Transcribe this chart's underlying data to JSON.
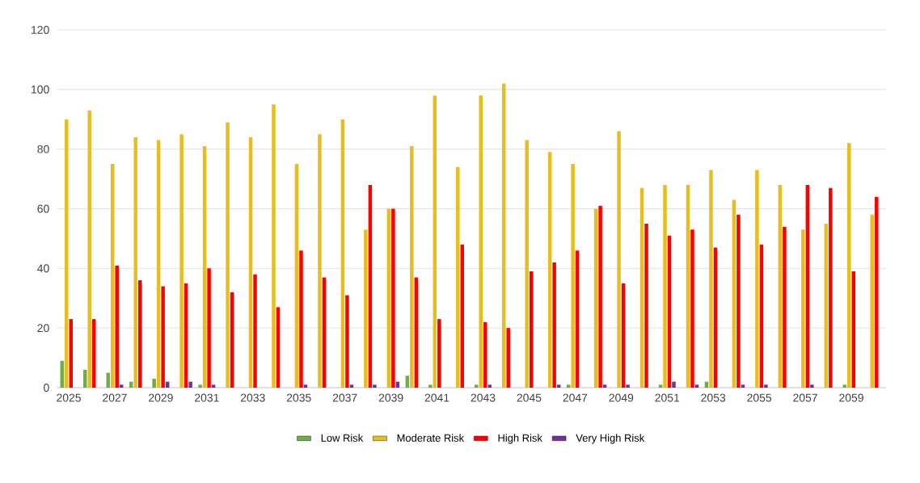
{
  "chart_data": {
    "type": "bar",
    "categories": [
      "2025",
      null,
      "2027",
      null,
      "2029",
      null,
      "2031",
      null,
      "2033",
      null,
      "2035",
      null,
      "2037",
      null,
      "2039",
      null,
      "2041",
      null,
      "2043",
      null,
      "2045",
      null,
      "2047",
      null,
      "2049",
      null,
      "2051",
      null,
      "2053",
      null,
      "2055",
      null,
      "2057",
      null,
      "2059",
      null
    ],
    "series": [
      {
        "name": "Low Risk",
        "color": "#70ad47",
        "values": [
          9,
          6,
          5,
          2,
          3,
          0,
          1,
          0,
          0,
          0,
          0,
          0,
          0,
          0,
          0,
          4,
          1,
          0,
          1,
          0,
          0,
          0,
          1,
          0,
          0,
          0,
          1,
          0,
          2,
          0,
          0,
          0,
          0,
          0,
          1,
          0
        ]
      },
      {
        "name": "Moderate Risk",
        "color": "#e8be1e",
        "values": [
          90,
          93,
          75,
          84,
          83,
          85,
          81,
          89,
          84,
          95,
          75,
          85,
          90,
          53,
          60,
          81,
          98,
          74,
          98,
          102,
          83,
          79,
          75,
          60,
          86,
          67,
          68,
          68,
          73,
          63,
          73,
          68,
          53,
          55,
          82,
          58
        ]
      },
      {
        "name": "High Risk",
        "color": "#ff0000",
        "values": [
          23,
          23,
          41,
          36,
          34,
          35,
          40,
          32,
          38,
          27,
          46,
          37,
          31,
          68,
          60,
          37,
          23,
          48,
          22,
          20,
          39,
          42,
          46,
          61,
          35,
          55,
          51,
          53,
          47,
          58,
          48,
          54,
          68,
          67,
          39,
          64
        ]
      },
      {
        "name": "Very High Risk",
        "color": "#7030a0",
        "values": [
          0,
          0,
          1,
          0,
          2,
          2,
          1,
          0,
          0,
          0,
          1,
          0,
          1,
          1,
          2,
          0,
          0,
          0,
          1,
          0,
          0,
          1,
          0,
          1,
          1,
          0,
          2,
          1,
          0,
          1,
          1,
          0,
          1,
          0,
          0,
          0
        ]
      }
    ],
    "ylim": [
      0,
      120
    ],
    "yticks": [
      0,
      20,
      40,
      60,
      80,
      100,
      120
    ],
    "grid": "y",
    "legend": "bottom"
  }
}
